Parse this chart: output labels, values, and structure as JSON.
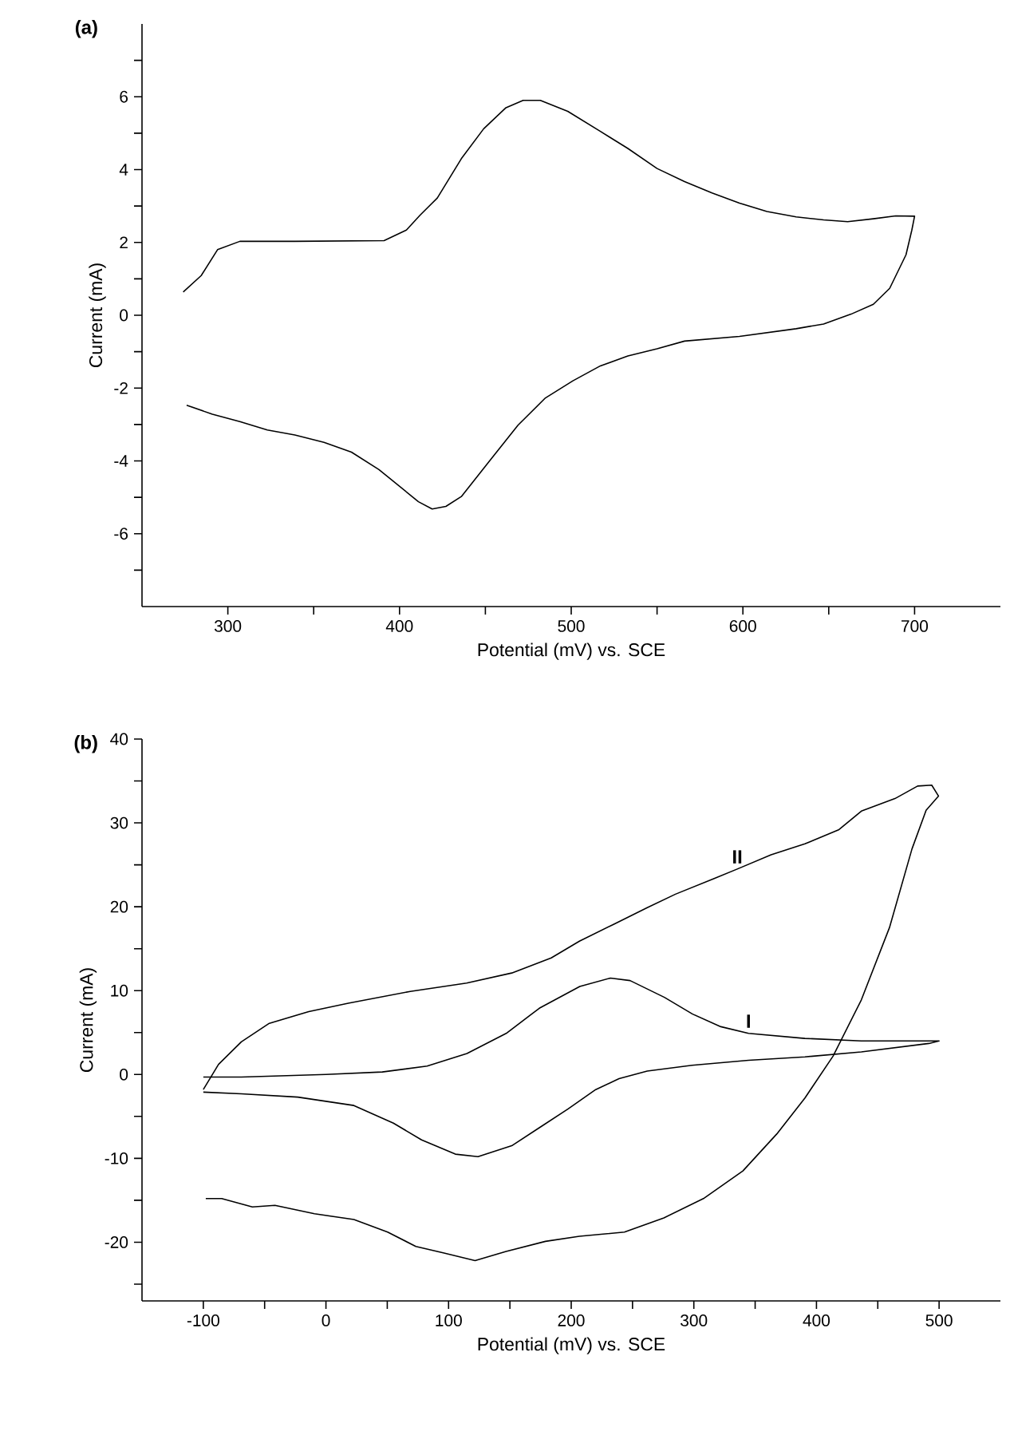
{
  "chart_data": [
    {
      "type": "line",
      "title": "(a)",
      "xlabel": "Potential (mV) vs. SCE",
      "ylabel": "Current (mA)",
      "xlim": [
        250,
        750
      ],
      "ylim": [
        -8,
        8
      ],
      "xticks": [
        300,
        {
          "value": 350,
          "label": null
        },
        400,
        {
          "value": 450,
          "label": null
        },
        500,
        {
          "value": 550,
          "label": null
        },
        600,
        {
          "value": 650,
          "label": null
        },
        700
      ],
      "yticks": [
        {
          "value": -7,
          "label": null
        },
        -6,
        {
          "value": -5,
          "label": null
        },
        -4,
        {
          "value": -3,
          "label": null
        },
        -2,
        {
          "value": -1,
          "label": null
        },
        0,
        {
          "value": 1,
          "label": null
        },
        2,
        {
          "value": 3,
          "label": null
        },
        4,
        {
          "value": 5,
          "label": null
        },
        6,
        {
          "value": 7,
          "label": null
        }
      ],
      "marker": "none",
      "line_style": "solid",
      "series": [
        {
          "color": "#000000",
          "x": [
            274,
            284.5,
            294,
            307,
            339,
            391,
            404,
            412,
            422,
            436,
            449,
            462,
            472,
            482,
            498,
            517,
            533,
            550,
            566,
            582,
            598,
            614,
            631,
            647,
            661,
            676,
            689,
            700,
            698.4,
            695,
            685.5,
            676,
            663,
            647,
            631,
            598,
            566,
            550,
            533,
            517,
            501,
            485,
            469,
            453,
            436,
            427,
            419,
            411,
            388,
            372,
            356,
            339,
            323,
            307,
            291,
            276
          ],
          "values": [
            0.64,
            1.09,
            1.8,
            2.03,
            2.03,
            2.05,
            2.34,
            2.75,
            3.22,
            4.3,
            5.12,
            5.7,
            5.9,
            5.9,
            5.6,
            5.05,
            4.58,
            4.03,
            3.67,
            3.36,
            3.08,
            2.85,
            2.7,
            2.62,
            2.57,
            2.65,
            2.73,
            2.72,
            2.34,
            1.66,
            0.74,
            0.3,
            0.03,
            -0.24,
            -0.37,
            -0.58,
            -0.71,
            -0.92,
            -1.12,
            -1.39,
            -1.8,
            -2.27,
            -3.02,
            -3.97,
            -4.98,
            -5.25,
            -5.32,
            -5.12,
            -4.24,
            -3.76,
            -3.49,
            -3.29,
            -3.15,
            -2.92,
            -2.72,
            -2.47
          ]
        }
      ]
    },
    {
      "type": "line",
      "title": "(b)",
      "xlabel": "Potential (mV) vs. SCE",
      "ylabel": "Current (mA)",
      "xlim": [
        -150,
        550
      ],
      "ylim": [
        -27,
        40
      ],
      "xticks": [
        -100,
        {
          "value": -50,
          "label": null
        },
        0,
        {
          "value": 50,
          "label": null
        },
        100,
        {
          "value": 150,
          "label": null
        },
        200,
        {
          "value": 250,
          "label": null
        },
        300,
        {
          "value": 350,
          "label": null
        },
        400,
        {
          "value": 450,
          "label": null
        },
        500
      ],
      "yticks": [
        {
          "value": -25,
          "label": null
        },
        -20,
        {
          "value": -15,
          "label": null
        },
        -10,
        {
          "value": -5,
          "label": null
        },
        0,
        {
          "value": 5,
          "label": null
        },
        10,
        {
          "value": 15,
          "label": null
        },
        20,
        {
          "value": 25,
          "label": null
        },
        30,
        {
          "value": 35,
          "label": null
        },
        40
      ],
      "marker": "none",
      "line_style": "solid",
      "series": [
        {
          "name": "I",
          "color": "#000000",
          "x": [
            -100,
            -69,
            0,
            46,
            82.5,
            115,
            147,
            174,
            207,
            232,
            248,
            276,
            299,
            322,
            344.6,
            390.6,
            436.6,
            500,
            491.7,
            436.6,
            390.6,
            344.6,
            298.6,
            262,
            239,
            220,
            197.5,
            174.5,
            151.5,
            124,
            105.5,
            78,
            55,
            22.8,
            -23,
            -69,
            -100
          ],
          "values": [
            -0.3,
            -0.3,
            0,
            0.3,
            1.0,
            2.5,
            4.9,
            7.9,
            10.5,
            11.5,
            11.2,
            9.2,
            7.2,
            5.7,
            4.9,
            4.3,
            4.0,
            4.0,
            3.7,
            2.7,
            2.1,
            1.7,
            1.1,
            0.4,
            -0.5,
            -1.8,
            -4.1,
            -6.3,
            -8.5,
            -9.8,
            -9.5,
            -7.8,
            -5.8,
            -3.7,
            -2.7,
            -2.3,
            -2.1
          ]
        },
        {
          "name": "II",
          "color": "#000000",
          "x": [
            -98,
            -85,
            -60,
            -41.6,
            -9.4,
            22.8,
            50.3,
            73.3,
            96.3,
            121.6,
            146.9,
            179,
            206.7,
            243.4,
            275.6,
            307.8,
            340,
            367.6,
            390.6,
            413.6,
            436.6,
            459.5,
            477.9,
            489.4,
            499.5,
            494,
            482.5,
            464,
            436.6,
            418.4,
            390.6,
            363,
            335.4,
            317,
            285,
            262,
            234.5,
            206.7,
            183.7,
            151.5,
            114.7,
            68.7,
            18.2,
            -14,
            -46.2,
            -69,
            -87.6,
            -100
          ],
          "values": [
            -14.8,
            -14.8,
            -15.8,
            -15.6,
            -16.6,
            -17.3,
            -18.8,
            -20.5,
            -21.3,
            -22.2,
            -21.1,
            -19.9,
            -19.3,
            -18.8,
            -17.1,
            -14.8,
            -11.5,
            -7.1,
            -2.8,
            2.2,
            8.9,
            17.5,
            26.9,
            31.5,
            33.2,
            34.5,
            34.4,
            32.9,
            31.4,
            29.2,
            27.5,
            26.2,
            24.5,
            23.4,
            21.5,
            19.9,
            17.9,
            15.9,
            13.9,
            12.1,
            10.9,
            9.9,
            8.5,
            7.5,
            6.1,
            3.9,
            1.2,
            -1.8
          ]
        }
      ]
    }
  ]
}
